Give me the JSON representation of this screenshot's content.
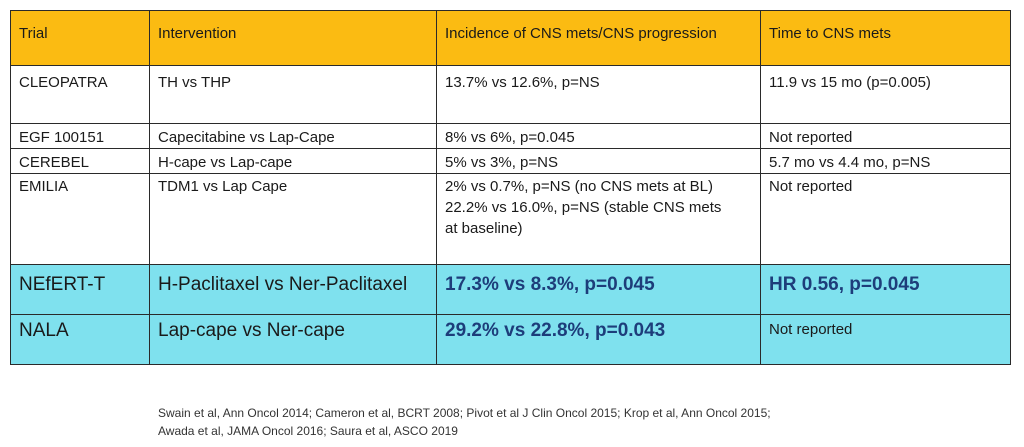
{
  "table": {
    "headers": [
      "Trial",
      "Intervention",
      "Incidence of CNS mets/CNS progression",
      "Time to CNS mets"
    ],
    "rows": [
      {
        "trial": "CLEOPATRA",
        "intervention": "TH vs THP",
        "incidence": [
          "13.7% vs 12.6%, p=NS"
        ],
        "time": "11.9 vs 15 mo (p=0.005)"
      },
      {
        "trial": "EGF 100151",
        "intervention": "Capecitabine vs Lap-Cape",
        "incidence": [
          "8% vs 6%, p=0.045"
        ],
        "time": "Not reported"
      },
      {
        "trial": "CEREBEL",
        "intervention": "H-cape vs Lap-cape",
        "incidence": [
          "5% vs 3%, p=NS"
        ],
        "time": "5.7 mo vs 4.4 mo, p=NS"
      },
      {
        "trial": "EMILIA",
        "intervention": "TDM1 vs Lap Cape",
        "incidence": [
          "2% vs 0.7%, p=NS (no CNS mets at BL)",
          "22.2% vs 16.0%, p=NS (stable CNS mets",
          "at baseline)"
        ],
        "time": "Not reported"
      },
      {
        "trial": "NEfERT-T",
        "intervention": "H-Paclitaxel vs Ner-Paclitaxel",
        "incidence": [
          "17.3% vs 8.3%, p=0.045"
        ],
        "time": "HR 0.56, p=0.045"
      },
      {
        "trial": "NALA",
        "intervention": "Lap-cape vs Ner-cape",
        "incidence": [
          "29.2% vs 22.8%, p=0.043"
        ],
        "time": "Not reported"
      }
    ]
  },
  "footnote": {
    "line1": "Swain et al, Ann Oncol 2014; Cameron et al, BCRT 2008; Pivot et al J Clin Oncol 2015; Krop et al, Ann Oncol 2015;",
    "line2": "Awada et al, JAMA Oncol 2016; Saura et al, ASCO 2019"
  },
  "colors": {
    "header_bg": "#fbbb12",
    "highlight_bg": "#7fe1ee",
    "highlight_text": "#1d3d7a"
  }
}
